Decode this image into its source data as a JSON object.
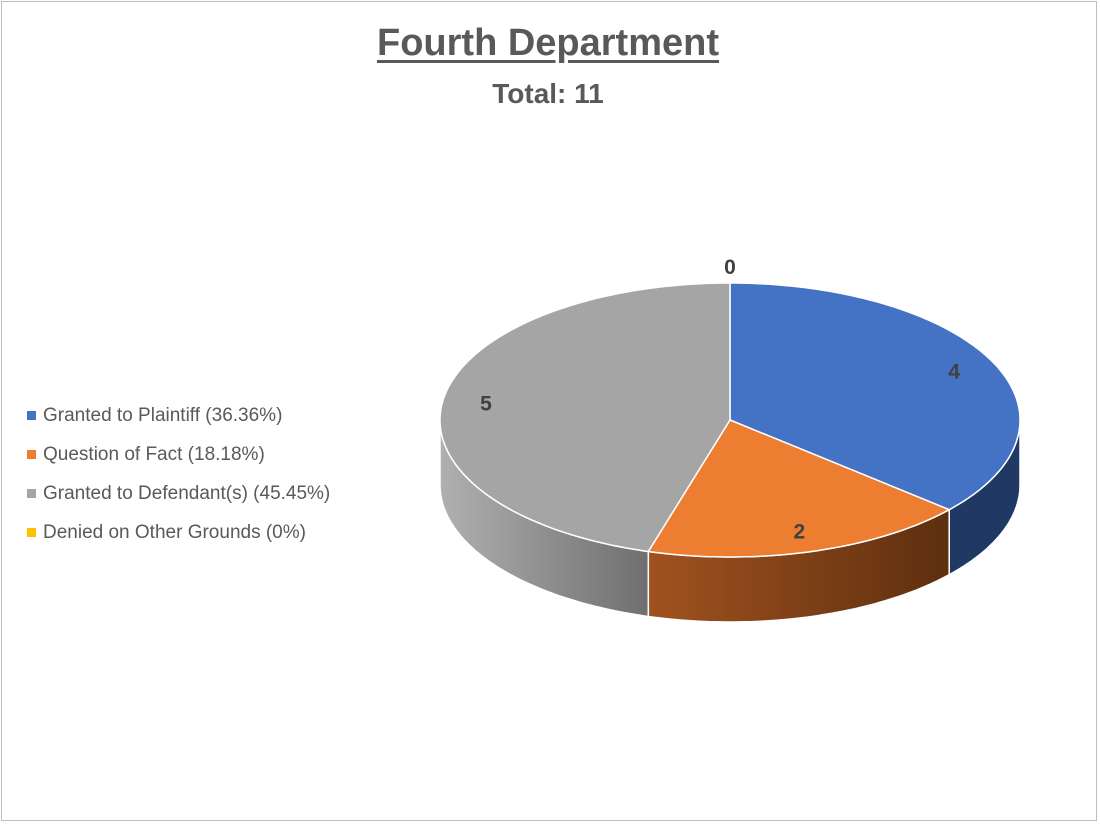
{
  "chart_data": {
    "type": "pie",
    "style": "3d",
    "title": "Fourth Department",
    "subtitle": "Total: 11",
    "categories": [
      "Granted to Plaintiff",
      "Question of Fact",
      "Granted to Defendant(s)",
      "Denied on Other Grounds"
    ],
    "values": [
      4,
      2,
      5,
      0
    ],
    "data_labels": [
      "4",
      "2",
      "5",
      "0"
    ],
    "legend": [
      "Granted to Plaintiff (36.36%)",
      "Question of Fact (18.18%)",
      "Granted to Defendant(s) (45.45%)",
      "Denied on Other Grounds (0%)"
    ],
    "legend_placement": "left",
    "colors": [
      "#4472c4",
      "#ed7d31",
      "#a5a5a5",
      "#ffc000"
    ],
    "side_colors": [
      "#1f3864",
      "#843c0c",
      "#7f7f7f",
      "#bf9000"
    ]
  }
}
